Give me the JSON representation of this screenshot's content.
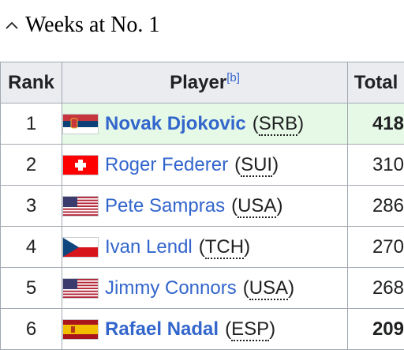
{
  "section": {
    "title": "Weeks at No. 1"
  },
  "table": {
    "headers": {
      "rank": "Rank",
      "player": "Player",
      "player_note": "[b]",
      "total": "Total"
    },
    "rows": [
      {
        "rank": "1",
        "flag": "serbia-flag",
        "name": "Novak Djokovic",
        "country_open": "(",
        "country": "SRB",
        "country_close": ")",
        "total": "418",
        "bold": true,
        "active": true
      },
      {
        "rank": "2",
        "flag": "switzerland-flag",
        "name": "Roger Federer",
        "country_open": "(",
        "country": "SUI",
        "country_close": ")",
        "total": "310",
        "bold": false,
        "active": false
      },
      {
        "rank": "3",
        "flag": "usa-flag",
        "name": "Pete Sampras",
        "country_open": "(",
        "country": "USA",
        "country_close": ")",
        "total": "286",
        "bold": false,
        "active": false
      },
      {
        "rank": "4",
        "flag": "czechoslovakia-flag",
        "name": "Ivan Lendl",
        "country_open": "(",
        "country": "TCH",
        "country_close": ")",
        "total": "270",
        "bold": false,
        "active": false
      },
      {
        "rank": "5",
        "flag": "usa-flag",
        "name": "Jimmy Connors",
        "country_open": "(",
        "country": "USA",
        "country_close": ")",
        "total": "268",
        "bold": false,
        "active": false
      },
      {
        "rank": "6",
        "flag": "spain-flag",
        "name": "Rafael Nadal",
        "country_open": "(",
        "country": "ESP",
        "country_close": ")",
        "total": "209",
        "bold": true,
        "active": false
      }
    ]
  },
  "colors": {
    "link": "#3366cc",
    "header_bg": "#eaecf0",
    "highlight_bg": "#e6f9e6",
    "border": "#a2a9b1"
  }
}
